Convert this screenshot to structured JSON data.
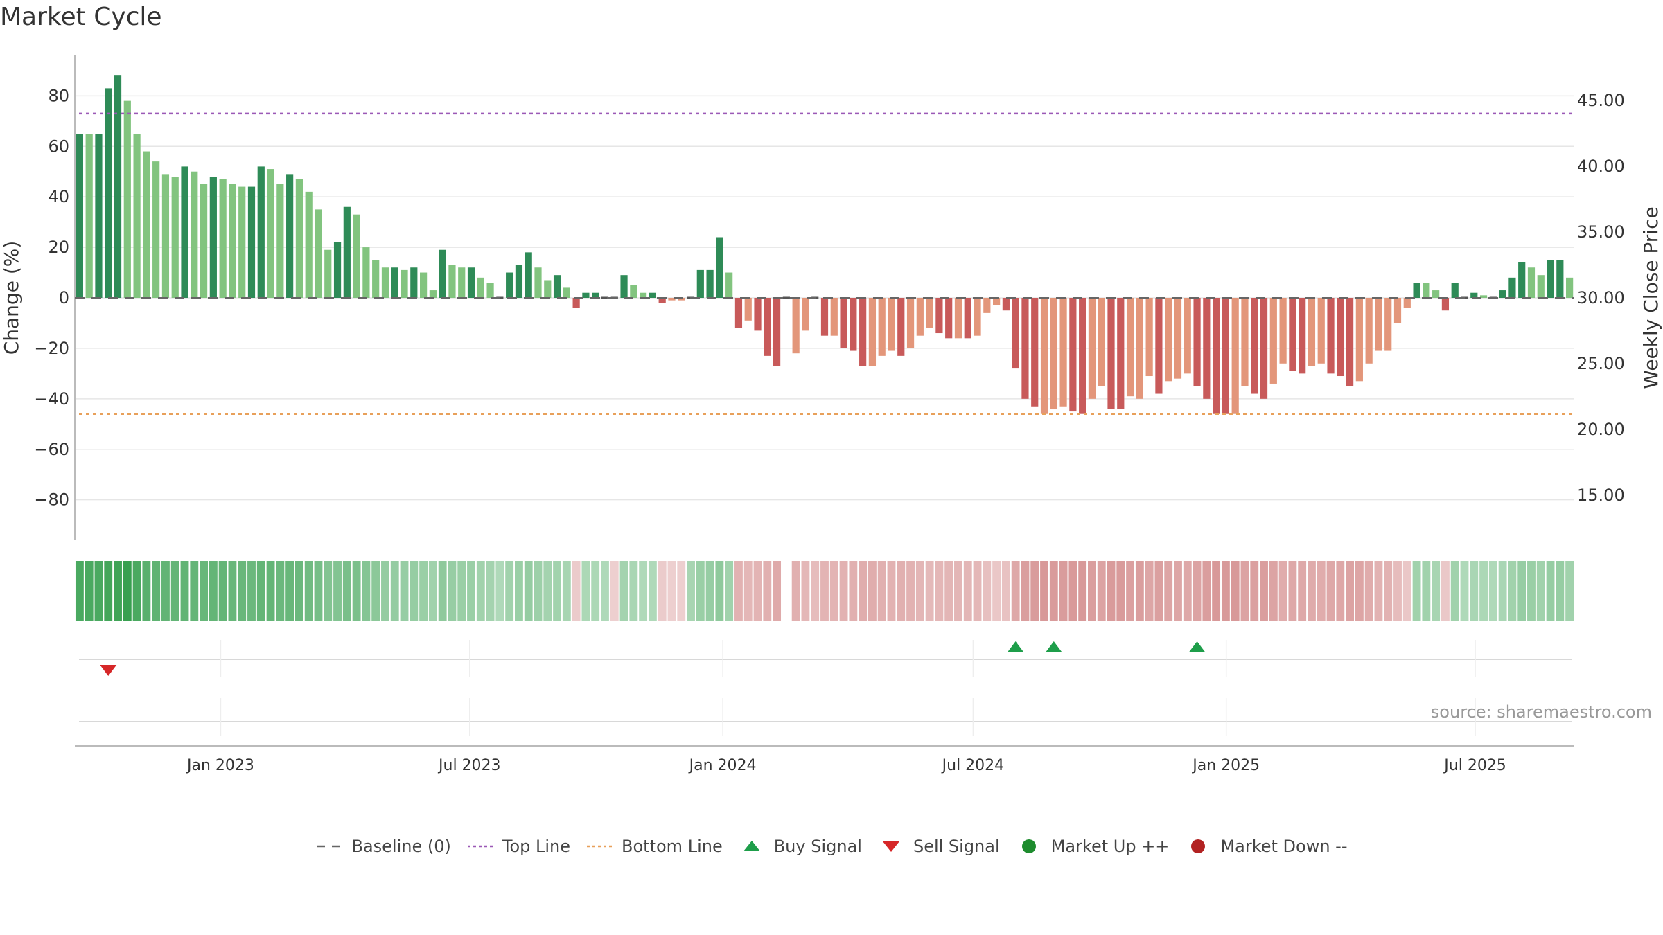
{
  "title": "Market Cycle",
  "source": "source: sharemaestro.com",
  "legend": [
    {
      "key": "baseline",
      "label": "Baseline (0)"
    },
    {
      "key": "top",
      "label": "Top Line"
    },
    {
      "key": "bottom",
      "label": "Bottom Line"
    },
    {
      "key": "buy",
      "label": "Buy Signal"
    },
    {
      "key": "sell",
      "label": "Sell Signal"
    },
    {
      "key": "up",
      "label": "Market Up ++"
    },
    {
      "key": "down",
      "label": "Market Down --"
    }
  ],
  "colors": {
    "pos_dark": "#2e8b57",
    "pos_light": "#82c47f",
    "neg_dark": "#c85a5a",
    "neg_light": "#e3967a",
    "top_line": "#9b59b6",
    "bottom_line": "#e8a05a",
    "buy": "#1e9e4a",
    "sell": "#d62728",
    "market_up": "#1e8c2e",
    "market_down": "#b22222",
    "grid": "#e6e6e6",
    "axis": "#bbbbbb",
    "baseline": "#666666"
  },
  "chart_data": {
    "type": "bar",
    "ylabel": "Change (%)",
    "y2label": "Weekly Close Price",
    "ylim": [
      -96,
      96
    ],
    "yticks": [
      80,
      60,
      40,
      20,
      0,
      -20,
      -40,
      -60,
      -80
    ],
    "ytick_labels": [
      "80",
      "60",
      "40",
      "20",
      "0",
      "−20",
      "−40",
      "−60",
      "−80"
    ],
    "y2ticks": [
      45,
      40,
      35,
      30,
      25,
      20,
      15
    ],
    "y2tick_labels": [
      "45.00",
      "40.00",
      "35.00",
      "30.00",
      "25.00",
      "20.00",
      "15.00"
    ],
    "y2lim": [
      11.55,
      49.48
    ],
    "x_start": "2022-09-17",
    "x_end": "2025-09-11",
    "xticks": [
      "2023-01-01",
      "2023-07-01",
      "2024-01-01",
      "2024-07-01",
      "2025-01-01",
      "2025-07-01"
    ],
    "xtick_labels": [
      "Jan 2023",
      "Jul 2023",
      "Jan 2024",
      "Jul 2024",
      "Jan 2025",
      "Jul 2025"
    ],
    "top_line": 73,
    "bottom_line": -46,
    "values": [
      65,
      65,
      65,
      83,
      88,
      78,
      65,
      58,
      54,
      49,
      48,
      52,
      50,
      45,
      48,
      47,
      45,
      44,
      44,
      52,
      51,
      45,
      49,
      47,
      42,
      35,
      19,
      22,
      36,
      33,
      20,
      15,
      12,
      12,
      11,
      12,
      10,
      3,
      19,
      13,
      12,
      12,
      8,
      6,
      0,
      10,
      13,
      18,
      12,
      7,
      9,
      4,
      -4,
      2,
      2,
      0,
      0,
      9,
      5,
      2,
      2,
      -2,
      -1,
      -1,
      0,
      11,
      11,
      24,
      10,
      -12,
      -9,
      -13,
      -23,
      -27,
      0,
      -22,
      -13,
      0,
      -15,
      -15,
      -20,
      -21,
      -27,
      -27,
      -23,
      -21,
      -23,
      -20,
      -15,
      -12,
      -14,
      -16,
      -16,
      -16,
      -15,
      -6,
      -3,
      -5,
      -28,
      -40,
      -43,
      -46,
      -44,
      -43,
      -45,
      -46,
      -40,
      -35,
      -44,
      -44,
      -39,
      -40,
      -31,
      -38,
      -33,
      -32,
      -30,
      -35,
      -40,
      -46,
      -46,
      -46,
      -35,
      -38,
      -40,
      -34,
      -26,
      -29,
      -30,
      -27,
      -26,
      -30,
      -31,
      -35,
      -33,
      -26,
      -21,
      -21,
      -10,
      -4,
      6,
      6,
      3,
      -5,
      6,
      0,
      2,
      1,
      0,
      3,
      8,
      14,
      12,
      9,
      15,
      15,
      8
    ],
    "dark": [
      1,
      0,
      1,
      1,
      1,
      0,
      0,
      0,
      0,
      0,
      0,
      1,
      0,
      0,
      1,
      0,
      0,
      0,
      1,
      1,
      0,
      0,
      1,
      0,
      0,
      0,
      0,
      1,
      1,
      0,
      0,
      0,
      0,
      1,
      0,
      1,
      0,
      0,
      1,
      0,
      0,
      1,
      0,
      0,
      0,
      1,
      1,
      1,
      0,
      0,
      1,
      0,
      1,
      1,
      1,
      0,
      0,
      1,
      0,
      0,
      1,
      1,
      0,
      0,
      0,
      1,
      1,
      1,
      0,
      1,
      0,
      1,
      1,
      1,
      0,
      0,
      0,
      0,
      1,
      0,
      1,
      1,
      1,
      0,
      0,
      0,
      1,
      0,
      0,
      0,
      1,
      1,
      0,
      1,
      0,
      0,
      0,
      1,
      1,
      1,
      1,
      0,
      0,
      0,
      1,
      1,
      0,
      0,
      1,
      1,
      0,
      0,
      0,
      1,
      0,
      0,
      0,
      1,
      1,
      1,
      1,
      0,
      0,
      1,
      1,
      0,
      0,
      1,
      1,
      0,
      0,
      1,
      1,
      1,
      0,
      0,
      0,
      0,
      0,
      0,
      1,
      0,
      0,
      1,
      1,
      0,
      1,
      0,
      0,
      1,
      1,
      1,
      0,
      0,
      1,
      1,
      0
    ],
    "heat": [
      0.88,
      0.88,
      0.88,
      0.92,
      0.95,
      1.0,
      0.88,
      0.78,
      0.74,
      0.72,
      0.7,
      0.72,
      0.7,
      0.68,
      0.7,
      0.7,
      0.68,
      0.67,
      0.66,
      0.7,
      0.7,
      0.66,
      0.68,
      0.66,
      0.62,
      0.58,
      0.5,
      0.5,
      0.56,
      0.55,
      0.48,
      0.44,
      0.38,
      0.38,
      0.36,
      0.37,
      0.34,
      0.3,
      0.42,
      0.36,
      0.34,
      0.34,
      0.3,
      0.28,
      0.2,
      0.3,
      0.34,
      0.38,
      0.32,
      0.28,
      0.29,
      0.25,
      -0.15,
      0.22,
      0.22,
      0.2,
      -0.12,
      0.28,
      0.24,
      0.2,
      0.2,
      -0.15,
      -0.12,
      -0.12,
      0.25,
      0.34,
      0.36,
      0.42,
      0.3,
      -0.4,
      -0.35,
      -0.38,
      -0.42,
      -0.48,
      0.0,
      -0.42,
      -0.35,
      -0.3,
      -0.38,
      -0.38,
      -0.4,
      -0.42,
      -0.45,
      -0.45,
      -0.42,
      -0.4,
      -0.42,
      -0.4,
      -0.36,
      -0.33,
      -0.35,
      -0.36,
      -0.36,
      -0.36,
      -0.35,
      -0.26,
      -0.2,
      -0.24,
      -0.5,
      -0.6,
      -0.62,
      -0.65,
      -0.63,
      -0.62,
      -0.64,
      -0.65,
      -0.6,
      -0.55,
      -0.63,
      -0.63,
      -0.58,
      -0.6,
      -0.52,
      -0.58,
      -0.53,
      -0.52,
      -0.5,
      -0.55,
      -0.6,
      -0.65,
      -0.65,
      -0.65,
      -0.55,
      -0.58,
      -0.6,
      -0.54,
      -0.46,
      -0.5,
      -0.5,
      -0.47,
      -0.46,
      -0.5,
      -0.51,
      -0.55,
      -0.53,
      -0.46,
      -0.4,
      -0.4,
      -0.3,
      -0.2,
      0.3,
      0.3,
      0.25,
      -0.18,
      0.3,
      0.2,
      0.24,
      0.22,
      0.2,
      0.24,
      0.3,
      0.36,
      0.34,
      0.3,
      0.37,
      0.37,
      0.3
    ],
    "buy_signals": [
      98,
      102,
      117
    ],
    "sell_signals": [
      3
    ]
  }
}
